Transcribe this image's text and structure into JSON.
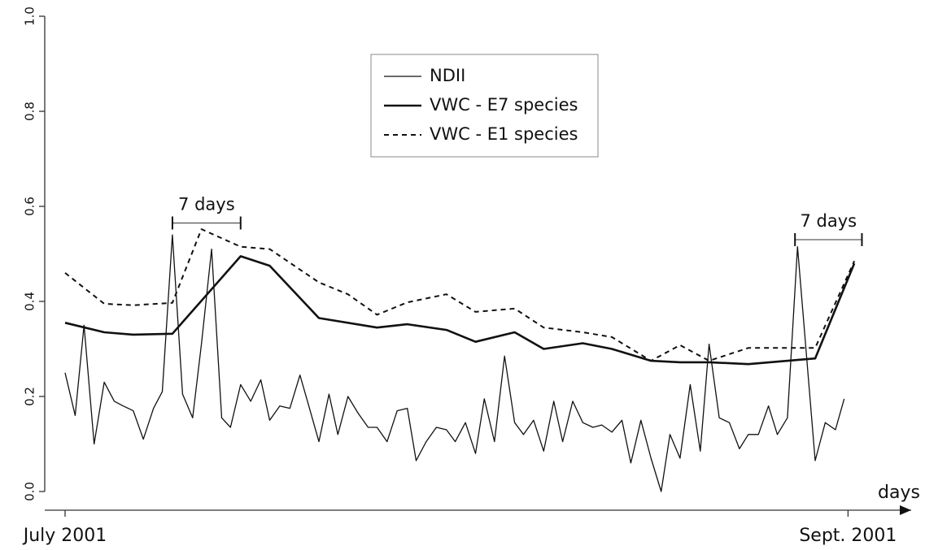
{
  "chart_data": {
    "type": "line",
    "x_label": "days",
    "xlim": [
      0,
      67
    ],
    "xticks": [
      {
        "value": 0,
        "label": "July 2001"
      },
      {
        "value": 62,
        "label": "Sept. 2001"
      }
    ],
    "ylim": [
      0,
      1
    ],
    "yticks": [
      {
        "value": 0,
        "label": "0.0"
      },
      0.2,
      0.4,
      0.6,
      0.8,
      {
        "value": 1,
        "label": "1.0"
      }
    ],
    "legend": "top",
    "series": [
      {
        "name": "NDII",
        "color": "#111111",
        "style": "thin",
        "x": [
          0,
          0.8,
          1.5,
          2.3,
          3.1,
          3.9,
          4.6,
          5.4,
          6.2,
          7.0,
          7.7,
          8.5,
          9.3,
          10.1,
          10.8,
          11.6,
          12.4,
          13.1,
          13.9,
          14.7,
          15.5,
          16.2,
          17.0,
          17.8,
          18.6,
          19.3,
          20.1,
          20.9,
          21.6,
          22.4,
          23.2,
          24.0,
          24.7,
          25.5,
          26.3,
          27.1,
          27.8,
          28.6,
          29.4,
          30.2,
          30.9,
          31.7,
          32.5,
          33.2,
          34.0,
          34.8,
          35.6,
          36.3,
          37.1,
          37.9,
          38.7,
          39.4,
          40.2,
          41.0,
          41.8,
          42.5,
          43.3,
          44.1,
          44.8,
          45.6,
          46.4,
          47.2,
          47.9,
          48.7,
          49.5,
          50.3,
          51.0,
          51.8,
          52.6,
          53.4,
          54.1,
          54.9,
          55.7,
          56.4,
          57.2,
          58.0,
          59.4,
          60.2,
          61.0,
          61.7
        ],
        "values": [
          0.25,
          0.16,
          0.35,
          0.1,
          0.23,
          0.19,
          0.18,
          0.17,
          0.11,
          0.175,
          0.21,
          0.54,
          0.205,
          0.155,
          0.31,
          0.51,
          0.155,
          0.135,
          0.225,
          0.19,
          0.235,
          0.15,
          0.18,
          0.175,
          0.245,
          0.18,
          0.105,
          0.205,
          0.12,
          0.2,
          0.165,
          0.135,
          0.135,
          0.105,
          0.17,
          0.175,
          0.065,
          0.105,
          0.135,
          0.13,
          0.105,
          0.145,
          0.08,
          0.195,
          0.105,
          0.285,
          0.145,
          0.12,
          0.15,
          0.085,
          0.19,
          0.105,
          0.19,
          0.145,
          0.135,
          0.14,
          0.125,
          0.15,
          0.06,
          0.15,
          0.07,
          0.0,
          0.12,
          0.07,
          0.225,
          0.085,
          0.31,
          0.155,
          0.145,
          0.09,
          0.12,
          0.12,
          0.18,
          0.12,
          0.155,
          0.515,
          0.065,
          0.145,
          0.13,
          0.195
        ]
      },
      {
        "name": "VWC - E7 species",
        "color": "#111111",
        "style": "thick",
        "x": [
          0,
          3.1,
          5.4,
          8.5,
          13.9,
          16.2,
          20.1,
          24.7,
          27.1,
          30.2,
          32.5,
          35.6,
          37.9,
          41.0,
          43.3,
          46.4,
          48.7,
          51.0,
          54.1,
          59.4,
          62.5
        ],
        "values": [
          0.355,
          0.335,
          0.33,
          0.332,
          0.495,
          0.475,
          0.365,
          0.345,
          0.352,
          0.34,
          0.315,
          0.335,
          0.3,
          0.312,
          0.3,
          0.275,
          0.272,
          0.272,
          0.268,
          0.28,
          0.48
        ]
      },
      {
        "name": "VWC - E1 species",
        "color": "#111111",
        "style": "dashed",
        "x": [
          0,
          3.1,
          5.4,
          8.5,
          10.8,
          13.9,
          16.2,
          20.1,
          22.4,
          24.7,
          27.1,
          30.2,
          32.5,
          35.6,
          37.9,
          41.0,
          43.3,
          46.4,
          48.7,
          51.0,
          54.1,
          57.2,
          59.4,
          62.5
        ],
        "values": [
          0.46,
          0.395,
          0.392,
          0.397,
          0.552,
          0.515,
          0.51,
          0.44,
          0.415,
          0.372,
          0.398,
          0.415,
          0.378,
          0.385,
          0.345,
          0.335,
          0.325,
          0.275,
          0.308,
          0.275,
          0.302,
          0.302,
          0.302,
          0.485
        ]
      }
    ],
    "annotations": [
      {
        "text": "7 days",
        "x_start": 8.5,
        "x_end": 13.9,
        "y": 0.565
      },
      {
        "text": "7 days",
        "x_start": 57.8,
        "x_end": 63.1,
        "y": 0.53
      }
    ]
  }
}
